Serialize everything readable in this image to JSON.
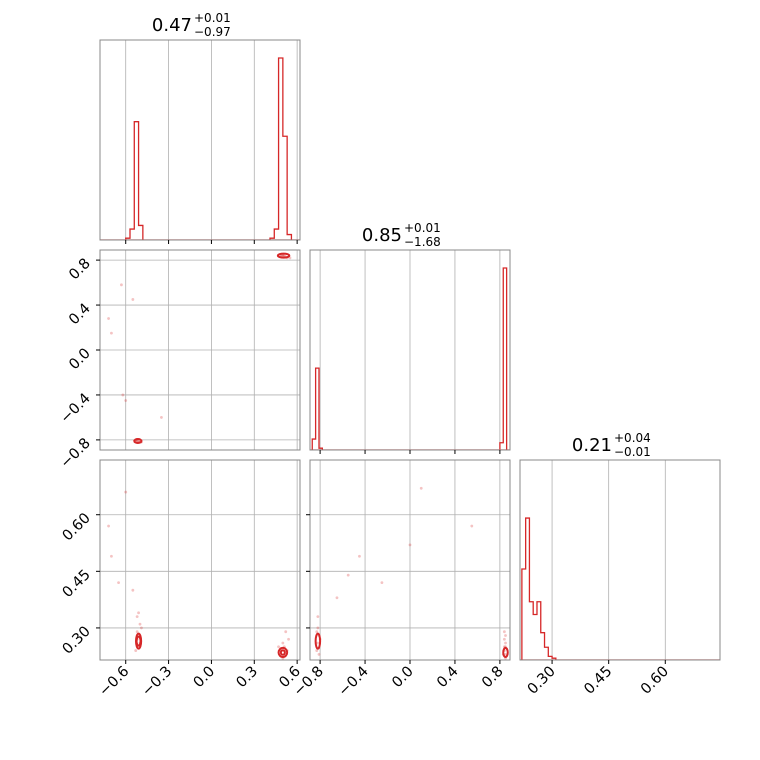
{
  "chart_data": {
    "type": "corner",
    "color": "#d62728",
    "grid": true,
    "titles": [
      {
        "value": "0.47",
        "plus": "+0.01",
        "minus": "−0.97"
      },
      {
        "value": "0.85",
        "plus": "+0.01",
        "minus": "−1.68"
      },
      {
        "value": "0.21",
        "plus": "+0.04",
        "minus": "−0.01"
      }
    ],
    "params": [
      {
        "range": [
          -0.78,
          0.62
        ],
        "ticks": [
          -0.6,
          -0.3,
          0.0,
          0.3,
          0.6
        ],
        "tick_labels": [
          "−0.6",
          "−0.3",
          "0.0",
          "0.3",
          "0.6"
        ]
      },
      {
        "range": [
          -0.89,
          0.89
        ],
        "ticks": [
          -0.8,
          -0.4,
          0.0,
          0.4,
          0.8
        ],
        "tick_labels": [
          "−0.8",
          "−0.4",
          "0.0",
          "0.4",
          "0.8"
        ]
      },
      {
        "range": [
          0.215,
          0.745
        ],
        "ticks": [
          0.3,
          0.45,
          0.6
        ],
        "tick_labels": [
          "0.30",
          "0.45",
          "0.60"
        ]
      }
    ],
    "histograms": [
      {
        "param": 0,
        "bins": [
          {
            "x0": -0.6,
            "x1": -0.57,
            "y": 0.01
          },
          {
            "x0": -0.57,
            "x1": -0.54,
            "y": 0.06
          },
          {
            "x0": -0.54,
            "x1": -0.51,
            "y": 0.65
          },
          {
            "x0": -0.51,
            "x1": -0.48,
            "y": 0.08
          },
          {
            "x0": 0.41,
            "x1": 0.44,
            "y": 0.01
          },
          {
            "x0": 0.44,
            "x1": 0.47,
            "y": 0.06
          },
          {
            "x0": 0.47,
            "x1": 0.5,
            "y": 1.0
          },
          {
            "x0": 0.5,
            "x1": 0.53,
            "y": 0.57
          },
          {
            "x0": 0.53,
            "x1": 0.56,
            "y": 0.03
          }
        ]
      },
      {
        "param": 1,
        "bins": [
          {
            "x0": -0.87,
            "x1": -0.84,
            "y": 0.06
          },
          {
            "x0": -0.84,
            "x1": -0.81,
            "y": 0.45
          },
          {
            "x0": -0.81,
            "x1": -0.78,
            "y": 0.01
          },
          {
            "x0": 0.8,
            "x1": 0.83,
            "y": 0.04
          },
          {
            "x0": 0.83,
            "x1": 0.86,
            "y": 1.0
          }
        ]
      },
      {
        "param": 2,
        "bins": [
          {
            "x0": 0.22,
            "x1": 0.23,
            "y": 0.5
          },
          {
            "x0": 0.23,
            "x1": 0.24,
            "y": 0.78
          },
          {
            "x0": 0.24,
            "x1": 0.25,
            "y": 0.32
          },
          {
            "x0": 0.25,
            "x1": 0.26,
            "y": 0.25
          },
          {
            "x0": 0.26,
            "x1": 0.27,
            "y": 0.32
          },
          {
            "x0": 0.27,
            "x1": 0.28,
            "y": 0.15
          },
          {
            "x0": 0.28,
            "x1": 0.29,
            "y": 0.07
          },
          {
            "x0": 0.29,
            "x1": 0.3,
            "y": 0.02
          },
          {
            "x0": 0.3,
            "x1": 0.31,
            "y": 0.01
          }
        ]
      }
    ],
    "scatters": [
      {
        "px": 0,
        "py": 1,
        "points": [
          [
            -0.53,
            -0.8
          ],
          [
            -0.52,
            -0.81
          ],
          [
            -0.51,
            -0.81
          ],
          [
            -0.5,
            -0.82
          ],
          [
            -0.49,
            -0.82
          ],
          [
            -0.53,
            -0.81
          ],
          [
            -0.51,
            -0.82
          ],
          [
            -0.52,
            -0.8
          ],
          [
            -0.62,
            -0.4
          ],
          [
            -0.6,
            -0.45
          ],
          [
            -0.72,
            0.28
          ],
          [
            -0.7,
            0.15
          ],
          [
            -0.55,
            0.45
          ],
          [
            -0.63,
            0.58
          ],
          [
            -0.35,
            -0.6
          ],
          [
            0.48,
            0.85
          ],
          [
            0.49,
            0.84
          ],
          [
            0.5,
            0.84
          ],
          [
            0.51,
            0.83
          ],
          [
            0.52,
            0.83
          ],
          [
            0.5,
            0.85
          ],
          [
            0.53,
            0.82
          ],
          [
            0.49,
            0.83
          ],
          [
            0.51,
            0.84
          ],
          [
            0.55,
            0.82
          ]
        ],
        "contours": [
          {
            "cx": -0.515,
            "cy": -0.81,
            "rx": 0.025,
            "ry": 0.015
          },
          {
            "cx": 0.505,
            "cy": 0.84,
            "rx": 0.04,
            "ry": 0.015
          }
        ]
      },
      {
        "px": 0,
        "py": 2,
        "points": [
          [
            -0.51,
            0.28
          ],
          [
            -0.52,
            0.27
          ],
          [
            -0.5,
            0.26
          ],
          [
            -0.51,
            0.25
          ],
          [
            -0.52,
            0.29
          ],
          [
            -0.5,
            0.31
          ],
          [
            -0.51,
            0.34
          ],
          [
            -0.53,
            0.24
          ],
          [
            -0.49,
            0.3
          ],
          [
            -0.52,
            0.33
          ],
          [
            -0.7,
            0.49
          ],
          [
            -0.65,
            0.42
          ],
          [
            -0.72,
            0.57
          ],
          [
            -0.6,
            0.66
          ],
          [
            -0.55,
            0.4
          ],
          [
            0.48,
            0.23
          ],
          [
            0.49,
            0.24
          ],
          [
            0.5,
            0.22
          ],
          [
            0.51,
            0.25
          ],
          [
            0.52,
            0.23
          ],
          [
            0.53,
            0.24
          ],
          [
            0.5,
            0.26
          ],
          [
            0.47,
            0.25
          ],
          [
            0.54,
            0.27
          ],
          [
            0.52,
            0.29
          ]
        ],
        "contours": [
          {
            "cx": -0.51,
            "cy": 0.265,
            "rx": 0.018,
            "ry": 0.02
          },
          {
            "cx": -0.51,
            "cy": 0.265,
            "rx": 0.008,
            "ry": 0.012
          },
          {
            "cx": 0.5,
            "cy": 0.235,
            "rx": 0.03,
            "ry": 0.012
          },
          {
            "cx": 0.5,
            "cy": 0.235,
            "rx": 0.014,
            "ry": 0.006
          }
        ]
      },
      {
        "px": 1,
        "py": 2,
        "points": [
          [
            -0.82,
            0.26
          ],
          [
            -0.81,
            0.28
          ],
          [
            -0.82,
            0.3
          ],
          [
            -0.83,
            0.24
          ],
          [
            -0.81,
            0.23
          ],
          [
            -0.82,
            0.33
          ],
          [
            -0.8,
            0.27
          ],
          [
            -0.83,
            0.29
          ],
          [
            -0.65,
            0.38
          ],
          [
            -0.45,
            0.49
          ],
          [
            -0.25,
            0.42
          ],
          [
            0.1,
            0.67
          ],
          [
            0.55,
            0.57
          ],
          [
            -0.55,
            0.44
          ],
          [
            0.0,
            0.52
          ],
          [
            0.84,
            0.24
          ],
          [
            0.85,
            0.23
          ],
          [
            0.85,
            0.25
          ],
          [
            0.84,
            0.27
          ],
          [
            0.85,
            0.22
          ],
          [
            0.84,
            0.29
          ],
          [
            0.85,
            0.26
          ],
          [
            0.83,
            0.23
          ],
          [
            0.84,
            0.25
          ],
          [
            0.85,
            0.28
          ]
        ],
        "contours": [
          {
            "cx": -0.82,
            "cy": 0.265,
            "rx": 0.02,
            "ry": 0.02
          },
          {
            "cx": 0.85,
            "cy": 0.235,
            "rx": 0.02,
            "ry": 0.012
          }
        ]
      }
    ]
  }
}
